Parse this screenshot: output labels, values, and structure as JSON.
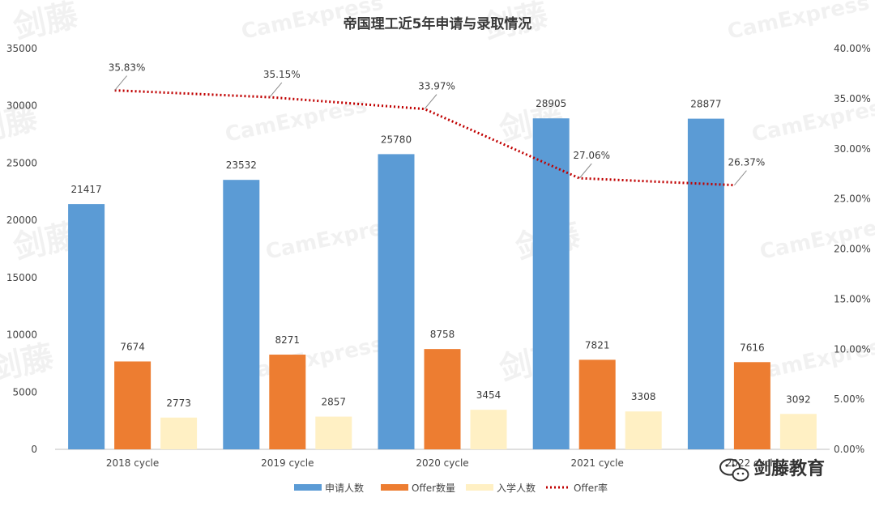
{
  "colors": {
    "applications": "#5b9bd5",
    "offers": "#ed7d31",
    "enrolled": "#fff0c4",
    "offer_rate": "#c00000",
    "axis": "#bfbfbf"
  },
  "logo": {
    "text": "剑藤教育",
    "icon": "wechat-icon"
  },
  "chart_data": {
    "type": "bar",
    "title": "帝国理工近5年申请与录取情况",
    "categories": [
      "2018 cycle",
      "2019 cycle",
      "2020 cycle",
      "2021 cycle",
      "2022 cycle"
    ],
    "series": [
      {
        "name": "申请人数",
        "type": "bar",
        "axis": "left",
        "values": [
          21417,
          23532,
          25780,
          28905,
          28877
        ],
        "labels": [
          "21417",
          "23532",
          "25780",
          "28905",
          "28877"
        ]
      },
      {
        "name": "Offer数量",
        "type": "bar",
        "axis": "left",
        "values": [
          7674,
          8271,
          8758,
          7821,
          7616
        ],
        "labels": [
          "7674",
          "8271",
          "8758",
          "7821",
          "7616"
        ]
      },
      {
        "name": "入学人数",
        "type": "bar",
        "axis": "left",
        "values": [
          2773,
          2857,
          3454,
          3308,
          3092
        ],
        "labels": [
          "2773",
          "2857",
          "3454",
          "3308",
          "3092"
        ]
      },
      {
        "name": "Offer率",
        "type": "line",
        "axis": "right",
        "values": [
          35.83,
          35.15,
          33.97,
          27.06,
          26.37
        ],
        "labels": [
          "35.83%",
          "35.15%",
          "33.97%",
          "27.06%",
          "26.37%"
        ]
      }
    ],
    "left_axis": {
      "min": 0,
      "max": 35000,
      "ticks": [
        "0",
        "5000",
        "10000",
        "15000",
        "20000",
        "25000",
        "30000",
        "35000"
      ]
    },
    "right_axis": {
      "min": 0,
      "max": 40,
      "ticks": [
        "0.00%",
        "5.00%",
        "10.00%",
        "15.00%",
        "20.00%",
        "25.00%",
        "30.00%",
        "35.00%",
        "40.00%"
      ]
    },
    "legend_position": "bottom",
    "grid": false
  }
}
